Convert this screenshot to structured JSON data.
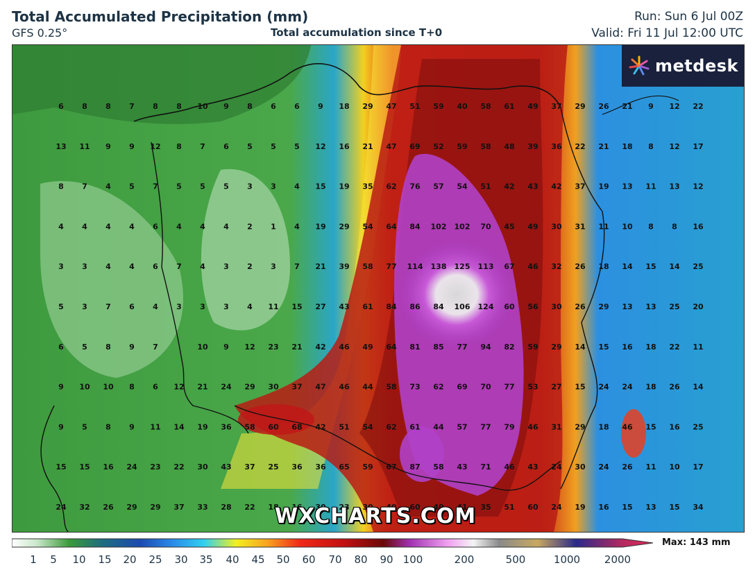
{
  "header": {
    "title": "Total Accumulated Precipitation (mm)",
    "model": "GFS 0.25°",
    "subtitle": "Total accumulation since T+0",
    "run": "Run: Sun 6 Jul 00Z",
    "valid": "Valid: Fri 11 Jul 12:00 UTC"
  },
  "logo": {
    "text": "metdesk",
    "icon": "metdesk-star-icon"
  },
  "watermark": "WXCHARTS.COM",
  "colorbar": {
    "ticks": [
      "1",
      "5",
      "10",
      "15",
      "20",
      "25",
      "30",
      "35",
      "40",
      "45",
      "50",
      "60",
      "70",
      "80",
      "90",
      "100",
      "200",
      "500",
      "1000",
      "2000"
    ],
    "max_label": "Max: 143 mm"
  },
  "grid_values": [
    [
      6,
      8,
      8,
      7,
      8,
      8,
      10,
      9,
      8,
      6,
      6,
      9,
      18,
      29,
      47,
      51,
      59,
      40,
      58,
      61,
      49,
      37,
      29,
      26,
      21,
      9,
      12,
      22
    ],
    [
      13,
      11,
      9,
      9,
      12,
      8,
      7,
      6,
      5,
      5,
      5,
      12,
      16,
      21,
      47,
      69,
      52,
      59,
      58,
      48,
      39,
      36,
      22,
      21,
      18,
      8,
      12,
      17
    ],
    [
      8,
      7,
      4,
      5,
      7,
      5,
      5,
      5,
      3,
      3,
      4,
      15,
      19,
      35,
      62,
      76,
      57,
      54,
      51,
      42,
      43,
      42,
      37,
      19,
      13,
      11,
      13,
      12
    ],
    [
      4,
      4,
      4,
      4,
      6,
      4,
      4,
      4,
      2,
      1,
      4,
      19,
      29,
      54,
      64,
      84,
      102,
      102,
      70,
      45,
      49,
      30,
      31,
      11,
      10,
      8,
      8,
      16
    ],
    [
      3,
      3,
      4,
      4,
      6,
      7,
      4,
      3,
      2,
      3,
      7,
      21,
      39,
      58,
      77,
      114,
      138,
      125,
      113,
      67,
      46,
      32,
      26,
      18,
      14,
      15,
      14,
      25
    ],
    [
      5,
      3,
      7,
      6,
      4,
      3,
      3,
      3,
      4,
      11,
      15,
      27,
      43,
      61,
      84,
      86,
      84,
      106,
      124,
      60,
      56,
      30,
      26,
      29,
      13,
      13,
      25,
      20
    ],
    [
      6,
      5,
      8,
      9,
      7,
      null,
      10,
      9,
      12,
      23,
      21,
      42,
      46,
      49,
      64,
      81,
      85,
      77,
      94,
      82,
      59,
      29,
      14,
      15,
      16,
      18,
      22,
      11
    ],
    [
      9,
      10,
      10,
      8,
      6,
      12,
      21,
      24,
      29,
      30,
      37,
      47,
      46,
      44,
      58,
      73,
      62,
      69,
      70,
      77,
      53,
      27,
      15,
      24,
      24,
      18,
      26,
      14
    ],
    [
      9,
      5,
      8,
      9,
      11,
      14,
      19,
      36,
      58,
      60,
      68,
      42,
      51,
      54,
      62,
      61,
      44,
      57,
      77,
      79,
      46,
      31,
      29,
      18,
      46,
      15,
      16,
      25
    ],
    [
      15,
      15,
      16,
      24,
      23,
      22,
      30,
      43,
      37,
      25,
      36,
      36,
      65,
      59,
      67,
      87,
      58,
      43,
      71,
      46,
      43,
      24,
      30,
      24,
      26,
      11,
      10,
      17
    ],
    [
      24,
      32,
      26,
      29,
      29,
      37,
      33,
      28,
      22,
      18,
      16,
      30,
      23,
      30,
      40,
      60,
      40,
      41,
      35,
      51,
      60,
      24,
      19,
      16,
      15,
      13,
      15,
      34
    ]
  ]
}
